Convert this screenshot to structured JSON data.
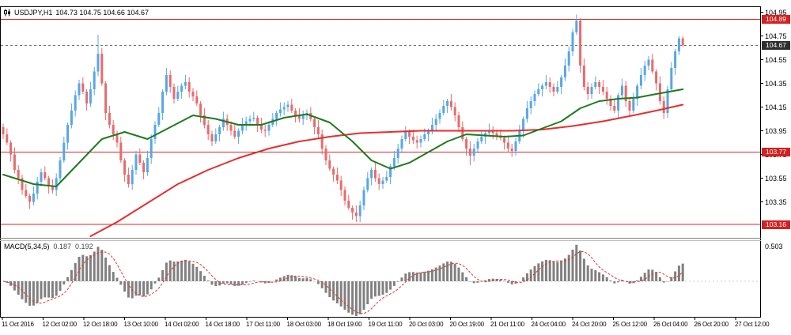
{
  "header": {
    "symbol": "USDJPY,H1",
    "ohlc": "104.73 104.75 104.66 104.67"
  },
  "colors": {
    "bull": "#58a6e8",
    "bear": "#e96a6a",
    "ma_green": "#1f7a1f",
    "ma_red": "#e62e2e",
    "hline": "#d42a2a",
    "bid_line": "#707070",
    "hist": "#808080",
    "signal": "#e03232",
    "badge_red": "#d42020",
    "badge_dark": "#2f2f2f"
  },
  "price_axis": {
    "labels": [
      "104.95",
      "104.75",
      "104.55",
      "104.35",
      "104.15",
      "103.95",
      "103.75",
      "103.55",
      "103.35"
    ],
    "line_badges": [
      {
        "label": "104.89",
        "value": 104.89
      },
      {
        "label": "103.77",
        "value": 103.77
      },
      {
        "label": "103.16",
        "value": 103.16
      }
    ],
    "current_badge": {
      "label": "104.67",
      "value": 104.67
    }
  },
  "time_axis": {
    "labels": [
      "11 Oct 2016",
      "12 Oct 02:00",
      "12 Oct 18:00",
      "13 Oct 10:00",
      "14 Oct 02:00",
      "14 Oct 18:00",
      "17 Oct 11:00",
      "18 Oct 03:00",
      "18 Oct 19:00",
      "19 Oct 11:00",
      "20 Oct 03:00",
      "20 Oct 19:00",
      "21 Oct 11:00",
      "24 Oct 04:00",
      "24 Oct 20:00",
      "25 Oct 12:00",
      "26 Oct 04:00",
      "26 Oct 20:00",
      "27 Oct 12:00"
    ]
  },
  "indicator": {
    "name": "MACD(5,34,5)",
    "value_main": "0.187",
    "value_signal": "0.192",
    "axis_label": "0.503"
  },
  "chart_data": {
    "type": "candlestick",
    "symbol": "USDJPY",
    "timeframe": "H1",
    "current_bar": {
      "open": 104.73,
      "high": 104.75,
      "low": 104.66,
      "close": 104.67
    },
    "price_range_visible": [
      103.04,
      105.0
    ],
    "hlines": [
      104.89,
      103.77,
      103.16
    ],
    "current_price": 104.67,
    "macd_params": {
      "fast": 5,
      "slow": 34,
      "signal": 5,
      "value_main": 0.187,
      "value_signal": 0.192,
      "scale_max": 0.503
    },
    "candles": [
      [
        103.98,
        104.01,
        103.88,
        103.92
      ],
      [
        103.92,
        103.97,
        103.83,
        103.85
      ],
      [
        103.85,
        103.87,
        103.69,
        103.75
      ],
      [
        103.75,
        103.81,
        103.59,
        103.62
      ],
      [
        103.62,
        103.66,
        103.5,
        103.55
      ],
      [
        103.55,
        103.58,
        103.41,
        103.45
      ],
      [
        103.45,
        103.5,
        103.38,
        103.4
      ],
      [
        103.4,
        103.42,
        103.29,
        103.35
      ],
      [
        103.35,
        103.48,
        103.32,
        103.42
      ],
      [
        103.42,
        103.56,
        103.37,
        103.52
      ],
      [
        103.52,
        103.63,
        103.48,
        103.6
      ],
      [
        103.6,
        103.65,
        103.53,
        103.55
      ],
      [
        103.55,
        103.57,
        103.42,
        103.48
      ],
      [
        103.48,
        103.54,
        103.42,
        103.45
      ],
      [
        103.45,
        103.59,
        103.4,
        103.55
      ],
      [
        103.55,
        103.73,
        103.51,
        103.7
      ],
      [
        103.7,
        103.9,
        103.68,
        103.85
      ],
      [
        103.85,
        104.02,
        103.79,
        104.0
      ],
      [
        104.0,
        104.18,
        103.97,
        104.12
      ],
      [
        104.12,
        104.29,
        104.07,
        104.25
      ],
      [
        104.25,
        104.38,
        104.21,
        104.35
      ],
      [
        104.35,
        104.4,
        104.26,
        104.28
      ],
      [
        104.28,
        104.3,
        104.12,
        104.18
      ],
      [
        104.18,
        104.36,
        104.15,
        104.3
      ],
      [
        104.3,
        104.49,
        104.25,
        104.45
      ],
      [
        104.45,
        104.76,
        104.41,
        104.6
      ],
      [
        104.6,
        104.65,
        104.33,
        104.35
      ],
      [
        104.35,
        104.37,
        104.04,
        104.1
      ],
      [
        104.1,
        104.16,
        103.97,
        104.0
      ],
      [
        104.0,
        104.04,
        103.87,
        103.92
      ],
      [
        103.92,
        103.95,
        103.81,
        103.85
      ],
      [
        103.85,
        103.9,
        103.68,
        103.7
      ],
      [
        103.7,
        103.72,
        103.52,
        103.58
      ],
      [
        103.58,
        103.64,
        103.47,
        103.5
      ],
      [
        103.5,
        103.66,
        103.45,
        103.62
      ],
      [
        103.62,
        103.78,
        103.58,
        103.75
      ],
      [
        103.75,
        103.8,
        103.66,
        103.68
      ],
      [
        103.68,
        103.7,
        103.54,
        103.6
      ],
      [
        103.6,
        103.78,
        103.57,
        103.72
      ],
      [
        103.72,
        103.92,
        103.67,
        103.88
      ],
      [
        103.88,
        104.03,
        103.84,
        104.0
      ],
      [
        104.0,
        104.15,
        103.98,
        104.1
      ],
      [
        104.1,
        104.3,
        104.04,
        104.28
      ],
      [
        104.28,
        104.48,
        104.25,
        104.42
      ],
      [
        104.42,
        104.46,
        104.27,
        104.32
      ],
      [
        104.32,
        104.35,
        104.18,
        104.22
      ],
      [
        104.22,
        104.33,
        104.2,
        104.28
      ],
      [
        104.28,
        104.35,
        104.22,
        104.33
      ],
      [
        104.33,
        104.42,
        104.3,
        104.36
      ],
      [
        104.36,
        104.4,
        104.23,
        104.28
      ],
      [
        104.28,
        104.31,
        104.2,
        104.24
      ],
      [
        104.24,
        104.29,
        104.16,
        104.18
      ],
      [
        104.18,
        104.2,
        104.02,
        104.08
      ],
      [
        104.08,
        104.14,
        103.97,
        104.0
      ],
      [
        104.0,
        104.04,
        103.87,
        103.92
      ],
      [
        103.92,
        103.95,
        103.82,
        103.86
      ],
      [
        103.86,
        103.97,
        103.84,
        103.92
      ],
      [
        103.92,
        104.0,
        103.86,
        103.98
      ],
      [
        103.98,
        104.11,
        103.95,
        104.05
      ],
      [
        104.05,
        104.09,
        103.95,
        104.0
      ],
      [
        104.0,
        104.03,
        103.91,
        103.95
      ],
      [
        103.95,
        104.0,
        103.88,
        103.9
      ],
      [
        103.9,
        103.97,
        103.84,
        103.95
      ],
      [
        103.95,
        104.06,
        103.92,
        104.0
      ],
      [
        104.0,
        104.07,
        103.95,
        104.03
      ],
      [
        104.03,
        104.08,
        103.99,
        104.05
      ],
      [
        104.05,
        104.11,
        104.03,
        104.06
      ],
      [
        104.06,
        104.08,
        103.94,
        104.0
      ],
      [
        104.0,
        104.06,
        103.93,
        103.96
      ],
      [
        103.96,
        104.0,
        103.9,
        103.95
      ],
      [
        103.95,
        104.03,
        103.91,
        104.0
      ],
      [
        104.0,
        104.1,
        103.98,
        104.05
      ],
      [
        104.05,
        104.12,
        103.99,
        104.1
      ],
      [
        104.1,
        104.19,
        104.07,
        104.13
      ],
      [
        104.13,
        104.19,
        104.08,
        104.15
      ],
      [
        104.15,
        104.2,
        104.11,
        104.17
      ],
      [
        104.17,
        104.22,
        104.1,
        104.12
      ],
      [
        104.12,
        104.14,
        104.02,
        104.08
      ],
      [
        104.08,
        104.14,
        104.02,
        104.05
      ],
      [
        104.05,
        104.12,
        104.0,
        104.08
      ],
      [
        104.08,
        104.13,
        104.04,
        104.1
      ],
      [
        104.1,
        104.15,
        104.03,
        104.05
      ],
      [
        104.05,
        104.07,
        103.92,
        103.98
      ],
      [
        103.98,
        104.04,
        103.89,
        103.92
      ],
      [
        103.92,
        103.96,
        103.75,
        103.8
      ],
      [
        103.8,
        103.83,
        103.66,
        103.7
      ],
      [
        103.7,
        103.75,
        103.61,
        103.63
      ],
      [
        103.63,
        103.65,
        103.52,
        103.58
      ],
      [
        103.58,
        103.64,
        103.5,
        103.53
      ],
      [
        103.53,
        103.57,
        103.4,
        103.45
      ],
      [
        103.45,
        103.48,
        103.32,
        103.36
      ],
      [
        103.36,
        103.41,
        103.28,
        103.3
      ],
      [
        103.3,
        103.32,
        103.2,
        103.26
      ],
      [
        103.26,
        103.32,
        103.18,
        103.23
      ],
      [
        103.23,
        103.36,
        103.18,
        103.32
      ],
      [
        103.32,
        103.48,
        103.28,
        103.45
      ],
      [
        103.45,
        103.6,
        103.43,
        103.55
      ],
      [
        103.55,
        103.64,
        103.49,
        103.62
      ],
      [
        103.62,
        103.68,
        103.52,
        103.55
      ],
      [
        103.55,
        103.59,
        103.45,
        103.5
      ],
      [
        103.5,
        103.56,
        103.46,
        103.53
      ],
      [
        103.53,
        103.61,
        103.51,
        103.56
      ],
      [
        103.56,
        103.67,
        103.5,
        103.65
      ],
      [
        103.65,
        103.78,
        103.62,
        103.72
      ],
      [
        103.72,
        103.84,
        103.67,
        103.8
      ],
      [
        103.8,
        103.91,
        103.76,
        103.88
      ],
      [
        103.88,
        103.99,
        103.86,
        103.94
      ],
      [
        103.94,
        103.96,
        103.84,
        103.9
      ],
      [
        103.9,
        103.96,
        103.84,
        103.87
      ],
      [
        103.87,
        103.91,
        103.8,
        103.85
      ],
      [
        103.85,
        103.91,
        103.81,
        103.88
      ],
      [
        103.88,
        103.97,
        103.86,
        103.92
      ],
      [
        103.92,
        103.97,
        103.86,
        103.95
      ],
      [
        103.95,
        104.06,
        103.92,
        104.0
      ],
      [
        104.0,
        104.09,
        103.95,
        104.05
      ],
      [
        104.05,
        104.13,
        104.01,
        104.1
      ],
      [
        104.1,
        104.21,
        104.08,
        104.16
      ],
      [
        104.16,
        104.22,
        104.1,
        104.2
      ],
      [
        104.2,
        104.26,
        104.12,
        104.15
      ],
      [
        104.15,
        104.19,
        104.03,
        104.08
      ],
      [
        104.08,
        104.11,
        103.94,
        103.98
      ],
      [
        103.98,
        104.03,
        103.86,
        103.88
      ],
      [
        103.88,
        103.9,
        103.74,
        103.8
      ],
      [
        103.8,
        103.86,
        103.66,
        103.74
      ],
      [
        103.74,
        103.84,
        103.69,
        103.8
      ],
      [
        103.8,
        103.89,
        103.76,
        103.86
      ],
      [
        103.86,
        103.95,
        103.84,
        103.9
      ],
      [
        103.9,
        103.95,
        103.84,
        103.93
      ],
      [
        103.93,
        104.01,
        103.9,
        103.95
      ],
      [
        103.95,
        103.99,
        103.88,
        103.93
      ],
      [
        103.93,
        103.96,
        103.87,
        103.91
      ],
      [
        103.91,
        103.96,
        103.87,
        103.89
      ],
      [
        103.89,
        103.91,
        103.79,
        103.85
      ],
      [
        103.85,
        103.91,
        103.77,
        103.8
      ],
      [
        103.8,
        103.84,
        103.73,
        103.78
      ],
      [
        103.78,
        103.89,
        103.74,
        103.86
      ],
      [
        103.86,
        104.0,
        103.84,
        103.95
      ],
      [
        103.95,
        104.07,
        103.89,
        104.05
      ],
      [
        104.05,
        104.2,
        104.02,
        104.14
      ],
      [
        104.14,
        104.24,
        104.09,
        104.2
      ],
      [
        104.2,
        104.29,
        104.16,
        104.26
      ],
      [
        104.26,
        104.35,
        104.24,
        104.3
      ],
      [
        104.3,
        104.35,
        104.24,
        104.33
      ],
      [
        104.33,
        104.42,
        104.3,
        104.36
      ],
      [
        104.36,
        104.4,
        104.27,
        104.32
      ],
      [
        104.32,
        104.35,
        104.24,
        104.28
      ],
      [
        104.28,
        104.37,
        104.26,
        104.32
      ],
      [
        104.32,
        104.42,
        104.26,
        104.4
      ],
      [
        104.4,
        104.56,
        104.37,
        104.5
      ],
      [
        104.5,
        104.66,
        104.45,
        104.62
      ],
      [
        104.62,
        104.81,
        104.58,
        104.78
      ],
      [
        104.78,
        104.93,
        104.76,
        104.88
      ],
      [
        104.88,
        104.9,
        104.44,
        104.5
      ],
      [
        104.5,
        104.56,
        104.29,
        104.32
      ],
      [
        104.32,
        104.36,
        104.21,
        104.26
      ],
      [
        104.26,
        104.35,
        104.22,
        104.32
      ],
      [
        104.32,
        104.41,
        104.3,
        104.36
      ],
      [
        104.36,
        104.38,
        104.26,
        104.32
      ],
      [
        104.32,
        104.38,
        104.25,
        104.28
      ],
      [
        104.28,
        104.32,
        104.17,
        104.22
      ],
      [
        104.22,
        104.25,
        104.12,
        104.16
      ],
      [
        104.16,
        104.21,
        104.1,
        104.12
      ],
      [
        104.12,
        104.27,
        104.06,
        104.25
      ],
      [
        104.25,
        104.39,
        104.22,
        104.33
      ],
      [
        104.33,
        104.37,
        104.15,
        104.2
      ],
      [
        104.2,
        104.23,
        104.08,
        104.12
      ],
      [
        104.12,
        104.27,
        104.1,
        104.22
      ],
      [
        104.22,
        104.35,
        104.16,
        104.33
      ],
      [
        104.33,
        104.48,
        104.3,
        104.42
      ],
      [
        104.42,
        104.54,
        104.37,
        104.5
      ],
      [
        104.5,
        104.58,
        104.46,
        104.55
      ],
      [
        104.55,
        104.6,
        104.43,
        104.45
      ],
      [
        104.45,
        104.47,
        104.29,
        104.35
      ],
      [
        104.35,
        104.41,
        104.17,
        104.2
      ],
      [
        104.2,
        104.24,
        104.05,
        104.1
      ],
      [
        104.1,
        104.33,
        104.06,
        104.3
      ],
      [
        104.3,
        104.53,
        104.28,
        104.48
      ],
      [
        104.48,
        104.64,
        104.42,
        104.62
      ],
      [
        104.62,
        104.75,
        104.59,
        104.73
      ],
      [
        104.73,
        104.75,
        104.66,
        104.67
      ]
    ],
    "ma_fast_green": [
      [
        0,
        103.58
      ],
      [
        8,
        103.5
      ],
      [
        14,
        103.48
      ],
      [
        20,
        103.68
      ],
      [
        26,
        103.88
      ],
      [
        32,
        103.94
      ],
      [
        38,
        103.88
      ],
      [
        44,
        103.98
      ],
      [
        50,
        104.08
      ],
      [
        56,
        104.05
      ],
      [
        62,
        104.0
      ],
      [
        68,
        104.0
      ],
      [
        74,
        104.06
      ],
      [
        80,
        104.09
      ],
      [
        86,
        104.02
      ],
      [
        92,
        103.86
      ],
      [
        97,
        103.7
      ],
      [
        102,
        103.63
      ],
      [
        107,
        103.68
      ],
      [
        112,
        103.77
      ],
      [
        117,
        103.86
      ],
      [
        122,
        103.92
      ],
      [
        127,
        103.91
      ],
      [
        132,
        103.9
      ],
      [
        137,
        103.91
      ],
      [
        142,
        103.97
      ],
      [
        147,
        104.03
      ],
      [
        152,
        104.14
      ],
      [
        157,
        104.2
      ],
      [
        162,
        104.22
      ],
      [
        167,
        104.23
      ],
      [
        172,
        104.26
      ],
      [
        179,
        104.3
      ]
    ],
    "ma_slow_red": [
      [
        23,
        103.06
      ],
      [
        30,
        103.18
      ],
      [
        38,
        103.34
      ],
      [
        46,
        103.5
      ],
      [
        54,
        103.62
      ],
      [
        62,
        103.72
      ],
      [
        70,
        103.8
      ],
      [
        78,
        103.86
      ],
      [
        86,
        103.9
      ],
      [
        94,
        103.93
      ],
      [
        102,
        103.94
      ],
      [
        110,
        103.95
      ],
      [
        118,
        103.95
      ],
      [
        126,
        103.95
      ],
      [
        134,
        103.95
      ],
      [
        142,
        103.96
      ],
      [
        150,
        103.99
      ],
      [
        158,
        104.03
      ],
      [
        166,
        104.08
      ],
      [
        172,
        104.12
      ],
      [
        179,
        104.17
      ]
    ]
  }
}
